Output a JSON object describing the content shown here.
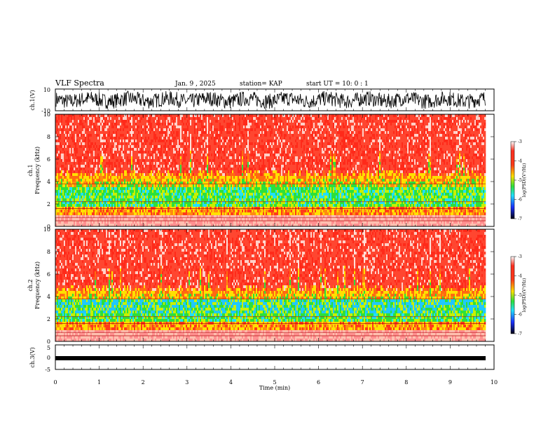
{
  "header": {
    "title": "VLF Spectra",
    "date": "Jan. 9 , 2025",
    "station": "station= KAP",
    "start_ut": "start UT =   10: 0  : 1"
  },
  "chart_data": [
    {
      "type": "line",
      "panel": "ch1-waveform",
      "ylabel": "ch.1(V)",
      "ylim": [
        -10,
        10
      ],
      "ytick_labels": [
        "10",
        "-10"
      ],
      "xlim": [
        0,
        9.8
      ],
      "description_series": "ch.1 voltage, fluctuating roughly between -8 and 9 V"
    },
    {
      "type": "heatmap",
      "panel": "ch1-spectrogram",
      "ylabel": "ch.1\nFrequency  (kHz)",
      "ylim": [
        0,
        10
      ],
      "ytick_labels": [
        "0",
        "2",
        "4",
        "6",
        "8",
        "10"
      ],
      "xlim": [
        0,
        9.8
      ],
      "colorbar": {
        "label": "log(PSD)(V²/Hz)",
        "range": [
          -7,
          -3
        ],
        "tick_labels": [
          "-3",
          "-4",
          "-5",
          "-6",
          "-7"
        ]
      }
    },
    {
      "type": "heatmap",
      "panel": "ch2-spectrogram",
      "ylabel": "ch.2\nFrequency  (kHz)",
      "ylim": [
        0,
        10
      ],
      "ytick_labels": [
        "0",
        "2",
        "4",
        "6",
        "8",
        "10"
      ],
      "xlim": [
        0,
        9.8
      ],
      "colorbar": {
        "label": "log(PSD)(V²/Hz)",
        "range": [
          -7,
          -3
        ],
        "tick_labels": [
          "-3",
          "-4",
          "-5",
          "-6",
          "-7"
        ]
      }
    },
    {
      "type": "line",
      "panel": "ch3-waveform",
      "ylabel": "ch.3(V)",
      "ylim": [
        -5,
        5
      ],
      "ytick_labels": [
        "5",
        "0",
        "-5"
      ],
      "xlim": [
        0,
        9.8
      ],
      "description_series": "ch.3 voltage, near-constant band around -1 V"
    }
  ],
  "xaxis": {
    "label": "Time  (min)",
    "range": [
      0,
      10
    ],
    "tick_labels": [
      "0",
      "1",
      "2",
      "3",
      "4",
      "5",
      "6",
      "7",
      "8",
      "9",
      "10"
    ]
  },
  "colors": {
    "red": "#ff2a1a",
    "yellow": "#ffe000",
    "green": "#2ee03a",
    "cyan": "#20e0ff",
    "blue": "#1a30ff",
    "black": "#000000"
  }
}
